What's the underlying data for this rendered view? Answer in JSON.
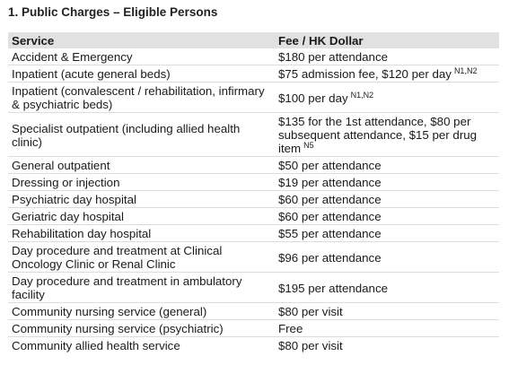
{
  "heading": "1. Public Charges – Eligible Persons",
  "table": {
    "headers": {
      "service": "Service",
      "fee": "Fee / HK Dollar"
    },
    "rows": [
      {
        "service": "Accident & Emergency",
        "fee": "$180 per attendance",
        "note": ""
      },
      {
        "service": "Inpatient (acute general beds)",
        "fee": "$75 admission fee, $120 per day",
        "note": "N1,N2"
      },
      {
        "service": "Inpatient (convalescent / rehabilitation, infirmary & psychiatric beds)",
        "fee": "$100 per day",
        "note": "N1,N2"
      },
      {
        "service": "Specialist outpatient (including allied health clinic)",
        "fee": "$135 for the 1st attendance, $80 per subsequent attendance, $15 per drug item",
        "note": "N5"
      },
      {
        "service": "General outpatient",
        "fee": "$50 per attendance",
        "note": ""
      },
      {
        "service": "Dressing or injection",
        "fee": "$19 per attendance",
        "note": ""
      },
      {
        "service": "Psychiatric day hospital",
        "fee": "$60 per attendance",
        "note": ""
      },
      {
        "service": "Geriatric day hospital",
        "fee": "$60 per attendance",
        "note": ""
      },
      {
        "service": "Rehabilitation day hospital",
        "fee": "$55 per attendance",
        "note": ""
      },
      {
        "service": "Day procedure and treatment at Clinical Oncology Clinic or Renal Clinic",
        "fee": "$96 per attendance",
        "note": ""
      },
      {
        "service": "Day procedure and treatment in ambulatory facility",
        "fee": "$195 per attendance",
        "note": ""
      },
      {
        "service": "Community nursing service (general)",
        "fee": "$80 per visit",
        "note": ""
      },
      {
        "service": "Community nursing service (psychiatric)",
        "fee": "Free",
        "note": ""
      },
      {
        "service": "Community allied health service",
        "fee": "$80 per visit",
        "note": ""
      }
    ]
  }
}
